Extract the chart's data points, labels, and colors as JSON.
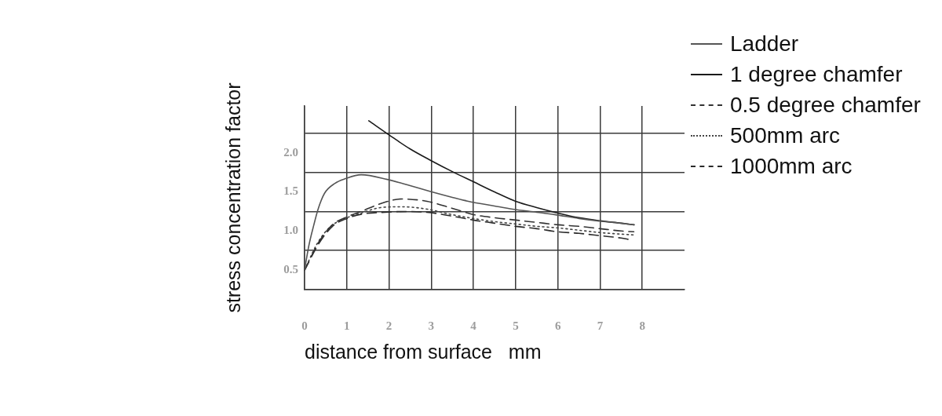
{
  "chart_data": {
    "type": "line",
    "xlabel": "distance from surface   mm",
    "ylabel": "stress concentration factor",
    "xlim": [
      0,
      9
    ],
    "xticks": [
      0,
      1,
      2,
      3,
      4,
      5,
      6,
      7,
      8
    ],
    "ylim": [
      0.25,
      2.6
    ],
    "yticks": [
      {
        "value": 0.25,
        "label": null
      },
      0.5,
      {
        "value": 0.75,
        "label": null
      },
      {
        "value": 1,
        "label": "1.0"
      },
      {
        "value": 1.25,
        "label": null
      },
      1.5,
      {
        "value": 1.75,
        "label": null
      },
      {
        "value": 2,
        "label": "2.0"
      },
      {
        "value": 2.25,
        "label": null
      }
    ],
    "grid": true,
    "legend": "top right",
    "marker": "none",
    "series": [
      {
        "name": "Ladder",
        "color": "#555555",
        "line_style": "solid",
        "x": [
          0,
          0.1,
          0.22,
          0.32,
          0.47,
          0.72,
          0.97,
          1.34,
          1.96,
          2.5,
          2.95,
          3.5,
          3.88,
          4.5,
          4.93,
          5.5,
          5.92,
          6.5,
          6.94,
          7.5,
          7.81
        ],
        "values": [
          0.5,
          0.81,
          1.08,
          1.28,
          1.48,
          1.61,
          1.67,
          1.72,
          1.66,
          1.58,
          1.51,
          1.43,
          1.38,
          1.32,
          1.28,
          1.24,
          1.21,
          1.16,
          1.13,
          1.1,
          1.08
        ]
      },
      {
        "name": "1 degree chamfer",
        "color": "#1a1a1a",
        "line_style": "solid",
        "x": [
          1.52,
          2,
          2.5,
          3,
          3.5,
          4,
          4.5,
          5,
          5.5,
          6,
          6.5,
          7,
          7.5,
          7.8
        ],
        "values": [
          2.41,
          2.23,
          2.05,
          1.9,
          1.76,
          1.63,
          1.5,
          1.38,
          1.3,
          1.23,
          1.17,
          1.13,
          1.1,
          1.08
        ]
      },
      {
        "name": "0.5 degree chamfer",
        "color": "#333333",
        "line_style": "dashed",
        "x": [
          0,
          0.35,
          0.66,
          1,
          1.34,
          1.8,
          2.3,
          2.9,
          3.5,
          4,
          4.5,
          5,
          5.5,
          6,
          6.5,
          7,
          7.5,
          7.8
        ],
        "values": [
          0.5,
          0.87,
          1.08,
          1.18,
          1.25,
          1.35,
          1.41,
          1.38,
          1.29,
          1.21,
          1.17,
          1.14,
          1.11,
          1.08,
          1.06,
          1.03,
          1,
          0.99
        ]
      },
      {
        "name": "500mm arc",
        "color": "#444444",
        "line_style": "dotted",
        "x": [
          0,
          0.3,
          0.6,
          1,
          1.34,
          1.8,
          2.3,
          2.9,
          3.4,
          4,
          4.5,
          5,
          5.5,
          6,
          6.5,
          7,
          7.5,
          7.8
        ],
        "values": [
          0.5,
          0.84,
          1.05,
          1.17,
          1.23,
          1.3,
          1.31,
          1.28,
          1.22,
          1.16,
          1.12,
          1.09,
          1.06,
          1.04,
          1.01,
          0.98,
          0.96,
          0.95
        ]
      },
      {
        "name": "1000mm arc",
        "color": "#2a2a2a",
        "line_style": "dashed",
        "x": [
          0,
          0.35,
          0.66,
          1,
          1.4,
          1.9,
          2.4,
          2.9,
          3.5,
          4,
          4.5,
          5,
          5.5,
          6,
          6.5,
          7,
          7.5,
          7.7
        ],
        "values": [
          0.5,
          0.85,
          1.06,
          1.16,
          1.22,
          1.24,
          1.25,
          1.24,
          1.19,
          1.14,
          1.1,
          1.06,
          1.03,
          0.99,
          0.97,
          0.94,
          0.91,
          0.89
        ]
      }
    ]
  }
}
